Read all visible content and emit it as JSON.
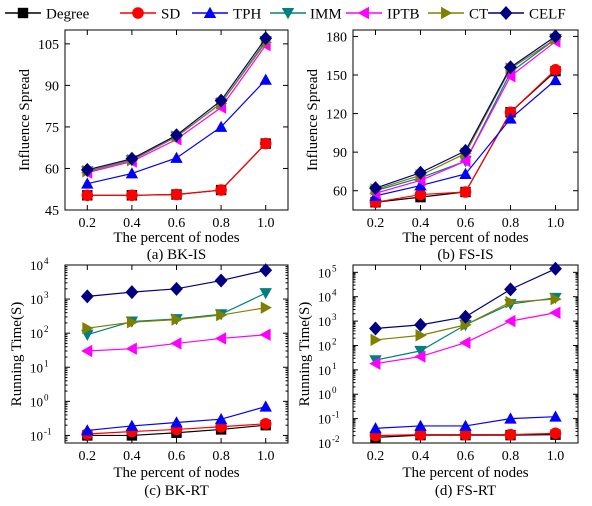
{
  "legend": {
    "entries": [
      {
        "name": "Degree",
        "color": "#000000",
        "marker": "square"
      },
      {
        "name": "SD",
        "color": "#ff0000",
        "marker": "circle"
      },
      {
        "name": "TPH",
        "color": "#0000ff",
        "marker": "triangle-up"
      },
      {
        "name": "IMM",
        "color": "#008080",
        "marker": "triangle-down"
      },
      {
        "name": "IPTB",
        "color": "#ff00ff",
        "marker": "triangle-left"
      },
      {
        "name": "CT",
        "color": "#808000",
        "marker": "triangle-right"
      },
      {
        "name": "CELF",
        "color": "#000080",
        "marker": "diamond"
      }
    ]
  },
  "chart_data": [
    {
      "type": "line",
      "caption": "(a) BK-IS",
      "xlabel": "The percent of nodes",
      "ylabel": "Influence Spread",
      "x": [
        0.2,
        0.4,
        0.6,
        0.8,
        1.0
      ],
      "x_ticks": [
        "0.2",
        "0.4",
        "0.6",
        "0.8",
        "1.0"
      ],
      "xlim": [
        0.1,
        1.1
      ],
      "ylim": [
        45,
        110
      ],
      "yscale": "linear",
      "y_ticks": [
        45,
        60,
        75,
        90,
        105
      ],
      "y_tick_labels": [
        "45",
        "60",
        "75",
        "90",
        "105"
      ],
      "series": [
        {
          "name": "Degree",
          "values": [
            50.3,
            50.3,
            50.6,
            52.2,
            69
          ]
        },
        {
          "name": "SD",
          "values": [
            50.3,
            50.3,
            50.6,
            52.2,
            69
          ]
        },
        {
          "name": "TPH",
          "values": [
            54.5,
            58.2,
            63.8,
            75,
            92
          ]
        },
        {
          "name": "IMM",
          "values": [
            59,
            63,
            71.5,
            83.5,
            106
          ]
        },
        {
          "name": "IPTB",
          "values": [
            58.5,
            62.5,
            70.5,
            82,
            104.5
          ]
        },
        {
          "name": "CT",
          "values": [
            59,
            63,
            71.5,
            83.5,
            105.5
          ]
        },
        {
          "name": "CELF",
          "values": [
            59.5,
            63.5,
            72,
            84.5,
            107
          ]
        }
      ]
    },
    {
      "type": "line",
      "caption": "(b) FS-IS",
      "xlabel": "The percent of nodes",
      "ylabel": "Influence Spread",
      "x": [
        0.2,
        0.4,
        0.6,
        0.8,
        1.0
      ],
      "x_ticks": [
        "0.2",
        "0.4",
        "0.6",
        "0.8",
        "1.0"
      ],
      "xlim": [
        0.1,
        1.1
      ],
      "ylim": [
        45,
        185
      ],
      "yscale": "linear",
      "y_ticks": [
        60,
        90,
        120,
        150,
        180
      ],
      "y_tick_labels": [
        "60",
        "90",
        "120",
        "150",
        "180"
      ],
      "series": [
        {
          "name": "Degree",
          "values": [
            51,
            55,
            59,
            121,
            153
          ]
        },
        {
          "name": "SD",
          "values": [
            51,
            57,
            59,
            121,
            154
          ]
        },
        {
          "name": "TPH",
          "values": [
            56,
            64,
            73,
            116,
            146
          ]
        },
        {
          "name": "IMM",
          "values": [
            60,
            70,
            83,
            152,
            178
          ]
        },
        {
          "name": "IPTB",
          "values": [
            58,
            68,
            83,
            149,
            176
          ]
        },
        {
          "name": "CT",
          "values": [
            61,
            72,
            89,
            155,
            178
          ]
        },
        {
          "name": "CELF",
          "values": [
            62,
            74,
            91,
            156,
            180
          ]
        }
      ]
    },
    {
      "type": "line",
      "caption": "(c) BK-RT",
      "xlabel": "The percent of nodes",
      "ylabel": "Running Time(S)",
      "x": [
        0.2,
        0.4,
        0.6,
        0.8,
        1.0
      ],
      "x_ticks": [
        "0.2",
        "0.4",
        "0.6",
        "0.8",
        "1.0"
      ],
      "xlim": [
        0.1,
        1.1
      ],
      "ylim": [
        0.06,
        10000
      ],
      "yscale": "log",
      "y_ticks": [
        0.1,
        1,
        10,
        100,
        1000,
        10000
      ],
      "y_tick_labels": [
        [
          "10",
          "-1"
        ],
        [
          "10",
          "0"
        ],
        [
          "10",
          "1"
        ],
        [
          "10",
          "2"
        ],
        [
          "10",
          "3"
        ],
        [
          "10",
          "4"
        ]
      ],
      "series": [
        {
          "name": "Degree",
          "values": [
            0.1,
            0.1,
            0.12,
            0.15,
            0.2
          ]
        },
        {
          "name": "SD",
          "values": [
            0.11,
            0.13,
            0.15,
            0.18,
            0.22
          ]
        },
        {
          "name": "TPH",
          "values": [
            0.14,
            0.19,
            0.24,
            0.3,
            0.7
          ]
        },
        {
          "name": "IMM",
          "values": [
            90,
            220,
            260,
            360,
            1500
          ]
        },
        {
          "name": "IPTB",
          "values": [
            30,
            35,
            50,
            70,
            90
          ]
        },
        {
          "name": "CT",
          "values": [
            140,
            210,
            250,
            340,
            560
          ]
        },
        {
          "name": "CELF",
          "values": [
            1200,
            1600,
            2000,
            3500,
            7000
          ]
        }
      ]
    },
    {
      "type": "line",
      "caption": "(d) FS-RT",
      "xlabel": "The percent of nodes",
      "ylabel": "Running Time(S)",
      "x": [
        0.2,
        0.4,
        0.6,
        0.8,
        1.0
      ],
      "x_ticks": [
        "0.2",
        "0.4",
        "0.6",
        "0.8",
        "1.0"
      ],
      "xlim": [
        0.1,
        1.1
      ],
      "ylim": [
        0.01,
        200000
      ],
      "yscale": "log",
      "y_ticks": [
        0.01,
        0.1,
        1,
        10,
        100,
        1000,
        10000,
        100000
      ],
      "y_tick_labels": [
        [
          "10",
          "-2"
        ],
        [
          "10",
          "-1"
        ],
        [
          "10",
          "0"
        ],
        [
          "10",
          "1"
        ],
        [
          "10",
          "2"
        ],
        [
          "10",
          "3"
        ],
        [
          "10",
          "4"
        ],
        [
          "10",
          "5"
        ]
      ],
      "series": [
        {
          "name": "Degree",
          "values": [
            0.017,
            0.021,
            0.021,
            0.021,
            0.022
          ]
        },
        {
          "name": "SD",
          "values": [
            0.02,
            0.022,
            0.022,
            0.022,
            0.025
          ]
        },
        {
          "name": "TPH",
          "values": [
            0.04,
            0.05,
            0.05,
            0.1,
            0.12
          ]
        },
        {
          "name": "IMM",
          "values": [
            25,
            60,
            700,
            5000,
            9000
          ]
        },
        {
          "name": "IPTB",
          "values": [
            18,
            35,
            130,
            1000,
            2200
          ]
        },
        {
          "name": "CT",
          "values": [
            170,
            260,
            700,
            6000,
            8000
          ]
        },
        {
          "name": "CELF",
          "values": [
            500,
            700,
            1500,
            20000,
            140000
          ]
        }
      ]
    }
  ]
}
